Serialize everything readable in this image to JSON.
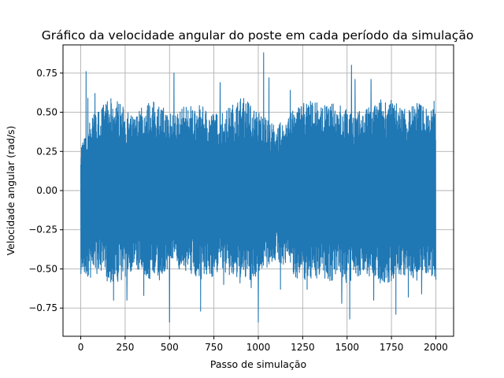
{
  "chart_data": {
    "type": "line",
    "title": "Gráfico da velocidade angular do poste em cada período da simulação",
    "xlabel": "Passo de simulação",
    "ylabel": "Velocidade angular (rad/s)",
    "xlim": [
      -100,
      2100
    ],
    "ylim": [
      -0.93,
      0.93
    ],
    "xticks": [
      0,
      250,
      500,
      750,
      1000,
      1250,
      1500,
      1750,
      2000
    ],
    "xtick_labels": [
      "0",
      "250",
      "500",
      "750",
      "1000",
      "1250",
      "1500",
      "1750",
      "2000"
    ],
    "yticks": [
      -0.75,
      -0.5,
      -0.25,
      0.0,
      0.25,
      0.5,
      0.75
    ],
    "ytick_labels": [
      "−0.75",
      "−0.50",
      "−0.25",
      "0.00",
      "0.25",
      "0.50",
      "0.75"
    ],
    "grid": true,
    "color": "#1f77b4",
    "series": [
      {
        "x_range": [
          0,
          2000
        ],
        "envelope_x": [
          0,
          10,
          20,
          30,
          50,
          75,
          100,
          150,
          200,
          250,
          300,
          350,
          400,
          450,
          500,
          550,
          600,
          650,
          700,
          750,
          800,
          850,
          900,
          950,
          1000,
          1050,
          1100,
          1150,
          1200,
          1250,
          1300,
          1350,
          1400,
          1450,
          1500,
          1550,
          1600,
          1650,
          1700,
          1750,
          1800,
          1850,
          1900,
          1950,
          2000
        ],
        "envelope_upper": [
          0.3,
          0.33,
          0.34,
          0.35,
          0.45,
          0.5,
          0.52,
          0.58,
          0.6,
          0.52,
          0.47,
          0.55,
          0.58,
          0.55,
          0.5,
          0.52,
          0.55,
          0.55,
          0.53,
          0.5,
          0.5,
          0.55,
          0.6,
          0.58,
          0.52,
          0.45,
          0.42,
          0.45,
          0.52,
          0.58,
          0.58,
          0.55,
          0.55,
          0.57,
          0.52,
          0.5,
          0.52,
          0.55,
          0.6,
          0.58,
          0.55,
          0.55,
          0.58,
          0.53,
          0.55
        ],
        "envelope_lower": [
          -0.55,
          -0.55,
          -0.57,
          -0.55,
          -0.58,
          -0.55,
          -0.52,
          -0.58,
          -0.6,
          -0.55,
          -0.5,
          -0.55,
          -0.58,
          -0.57,
          -0.52,
          -0.5,
          -0.52,
          -0.55,
          -0.58,
          -0.55,
          -0.52,
          -0.57,
          -0.6,
          -0.58,
          -0.55,
          -0.5,
          -0.45,
          -0.48,
          -0.55,
          -0.58,
          -0.57,
          -0.55,
          -0.58,
          -0.58,
          -0.6,
          -0.55,
          -0.55,
          -0.58,
          -0.6,
          -0.58,
          -0.55,
          -0.55,
          -0.58,
          -0.55,
          -0.55
        ],
        "spikes": [
          [
            30,
            0.76
          ],
          [
            40,
            0.59
          ],
          [
            80,
            0.62
          ],
          [
            180,
            0.52
          ],
          [
            185,
            -0.7
          ],
          [
            260,
            -0.7
          ],
          [
            355,
            -0.67
          ],
          [
            500,
            -0.84
          ],
          [
            525,
            0.75
          ],
          [
            675,
            -0.77
          ],
          [
            785,
            0.69
          ],
          [
            805,
            -0.6
          ],
          [
            960,
            -0.62
          ],
          [
            1000,
            -0.84
          ],
          [
            1030,
            0.88
          ],
          [
            1060,
            0.72
          ],
          [
            1125,
            -0.63
          ],
          [
            1180,
            0.64
          ],
          [
            1275,
            -0.63
          ],
          [
            1470,
            -0.72
          ],
          [
            1515,
            -0.82
          ],
          [
            1525,
            0.8
          ],
          [
            1545,
            0.71
          ],
          [
            1635,
            0.71
          ],
          [
            1650,
            -0.7
          ],
          [
            1775,
            -0.79
          ],
          [
            1845,
            -0.68
          ],
          [
            1920,
            -0.66
          ],
          [
            1990,
            0.57
          ],
          [
            2000,
            -0.57
          ]
        ]
      }
    ]
  }
}
